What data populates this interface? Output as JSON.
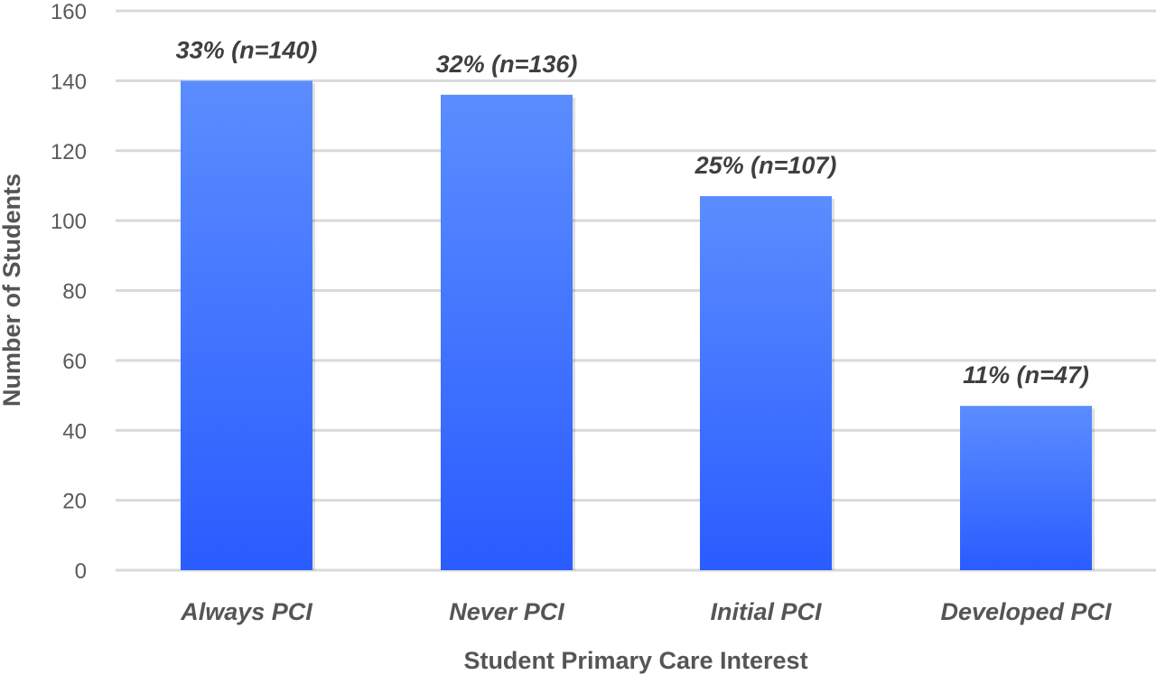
{
  "chart_data": {
    "type": "bar",
    "title": "",
    "xlabel": "Student Primary Care Interest",
    "ylabel": "Number of Students",
    "categories": [
      "Always PCI",
      "Never PCI",
      "Initial PCI",
      "Developed PCI"
    ],
    "values": [
      140,
      136,
      107,
      47
    ],
    "data_labels": [
      "33% (n=140)",
      "32% (n=136)",
      "25% (n=107)",
      "11% (n=47)"
    ],
    "ylim": [
      0,
      160
    ],
    "yticks": [
      0,
      20,
      40,
      60,
      80,
      100,
      120,
      140,
      160
    ],
    "grid": true,
    "legend": "none",
    "colors": {
      "bar_top": "#5B8DFF",
      "bar_bottom": "#2A5CFF",
      "grid": "#d9d9d9"
    }
  }
}
